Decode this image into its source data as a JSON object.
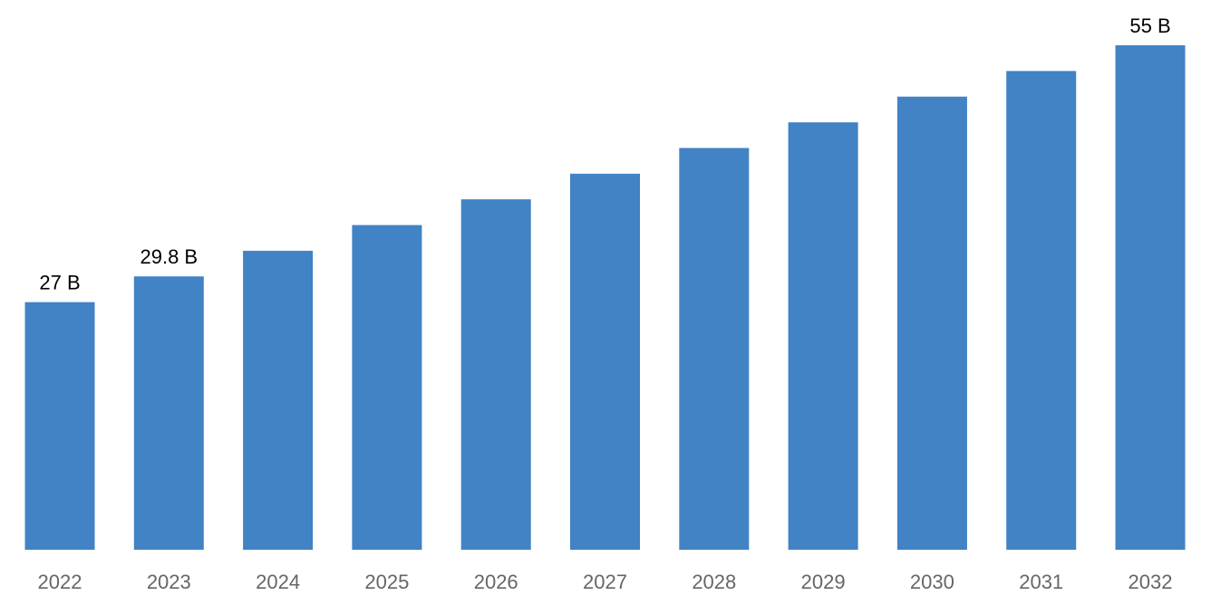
{
  "chart_data": {
    "type": "bar",
    "categories": [
      "2022",
      "2023",
      "2024",
      "2025",
      "2026",
      "2027",
      "2028",
      "2029",
      "2030",
      "2031",
      "2032"
    ],
    "values": [
      27,
      29.8,
      32.6,
      35.4,
      38.2,
      41,
      43.8,
      46.6,
      49.4,
      52.2,
      55
    ],
    "data_labels": [
      "27 B",
      "29.8 B",
      "",
      "",
      "",
      "",
      "",
      "",
      "",
      "",
      "55 B"
    ],
    "title": "",
    "xlabel": "",
    "ylabel": "",
    "ylim": [
      0,
      55
    ],
    "grid": false,
    "bar_color": "#4183c4"
  }
}
